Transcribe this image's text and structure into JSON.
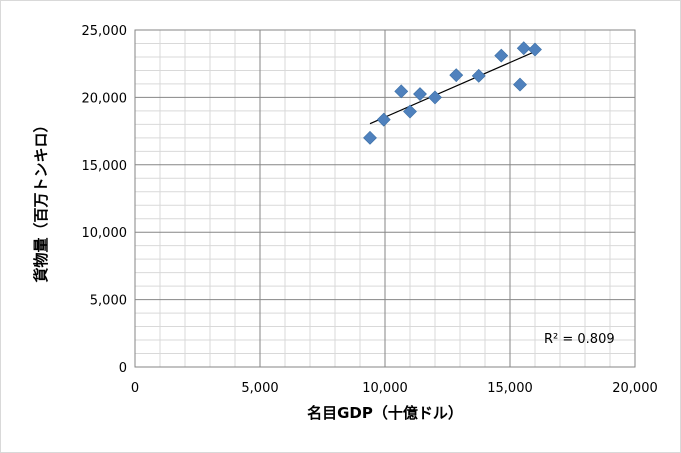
{
  "chart_data": {
    "type": "scatter",
    "xlabel": "名目GDP（十億ドル）",
    "ylabel": "貨物量（百万トンキロ）",
    "xlim": [
      0,
      20000
    ],
    "ylim": [
      0,
      25000
    ],
    "x_major_ticks": [
      0,
      5000,
      10000,
      15000,
      20000
    ],
    "y_major_ticks": [
      0,
      5000,
      10000,
      15000,
      20000,
      25000
    ],
    "x_tick_labels": [
      "0",
      "5,000",
      "10,000",
      "15,000",
      "20,000"
    ],
    "y_tick_labels": [
      "0",
      "5,000",
      "10,000",
      "15,000",
      "20,000",
      "25,000"
    ],
    "x_minor_step": 1000,
    "y_minor_step": 1000,
    "grid": true,
    "series": [
      {
        "marker": "diamond",
        "color": "#4f81bd",
        "points": [
          {
            "x": 9400,
            "y": 17000
          },
          {
            "x": 9950,
            "y": 18350
          },
          {
            "x": 10650,
            "y": 20450
          },
          {
            "x": 11000,
            "y": 18950
          },
          {
            "x": 11400,
            "y": 20250
          },
          {
            "x": 12000,
            "y": 20000
          },
          {
            "x": 12850,
            "y": 21650
          },
          {
            "x": 13750,
            "y": 21600
          },
          {
            "x": 14650,
            "y": 23100
          },
          {
            "x": 15400,
            "y": 20950
          },
          {
            "x": 15550,
            "y": 23650
          },
          {
            "x": 16000,
            "y": 23550
          }
        ]
      }
    ],
    "trendline": {
      "type": "linear",
      "from": {
        "x": 9400,
        "y": 18050
      },
      "to": {
        "x": 16000,
        "y": 23400
      },
      "color": "#000000"
    },
    "annotation": "R² = 0.809"
  }
}
